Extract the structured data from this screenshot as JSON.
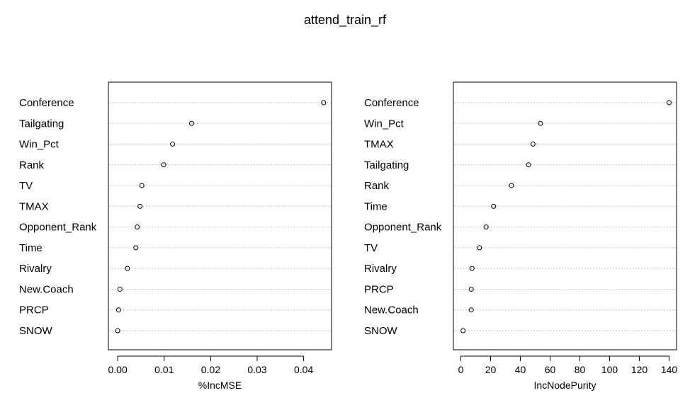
{
  "title": "attend_train_rf",
  "chart_data": [
    {
      "type": "scatter",
      "xlabel": "%IncMSE",
      "xlim": [
        -0.002,
        0.046
      ],
      "ticks": [
        0.0,
        0.01,
        0.02,
        0.03,
        0.04
      ],
      "tick_labels": [
        "0.00",
        "0.01",
        "0.02",
        "0.03",
        "0.04"
      ],
      "grid": "horizontal-dotted",
      "categories": [
        "Conference",
        "Tailgating",
        "Win_Pct",
        "Rank",
        "TV",
        "TMAX",
        "Opponent_Rank",
        "Time",
        "Rivalry",
        "New.Coach",
        "PRCP",
        "SNOW"
      ],
      "values": [
        0.0443,
        0.0159,
        0.0118,
        0.0099,
        0.0052,
        0.0048,
        0.0042,
        0.0039,
        0.0021,
        0.0005,
        0.0002,
        0.0
      ]
    },
    {
      "type": "scatter",
      "xlabel": "IncNodePurity",
      "xlim": [
        -5,
        145
      ],
      "ticks": [
        0,
        20,
        40,
        60,
        80,
        100,
        120,
        140
      ],
      "tick_labels": [
        "0",
        "20",
        "40",
        "60",
        "80",
        "100",
        "120",
        "140"
      ],
      "grid": "horizontal-dotted",
      "categories": [
        "Conference",
        "Win_Pct",
        "TMAX",
        "Tailgating",
        "Rank",
        "Time",
        "Opponent_Rank",
        "TV",
        "Rivalry",
        "PRCP",
        "New.Coach",
        "SNOW"
      ],
      "values": [
        140,
        53.5,
        48.5,
        45.5,
        34,
        22,
        17,
        12.5,
        7.5,
        7,
        7,
        1.5
      ]
    }
  ]
}
